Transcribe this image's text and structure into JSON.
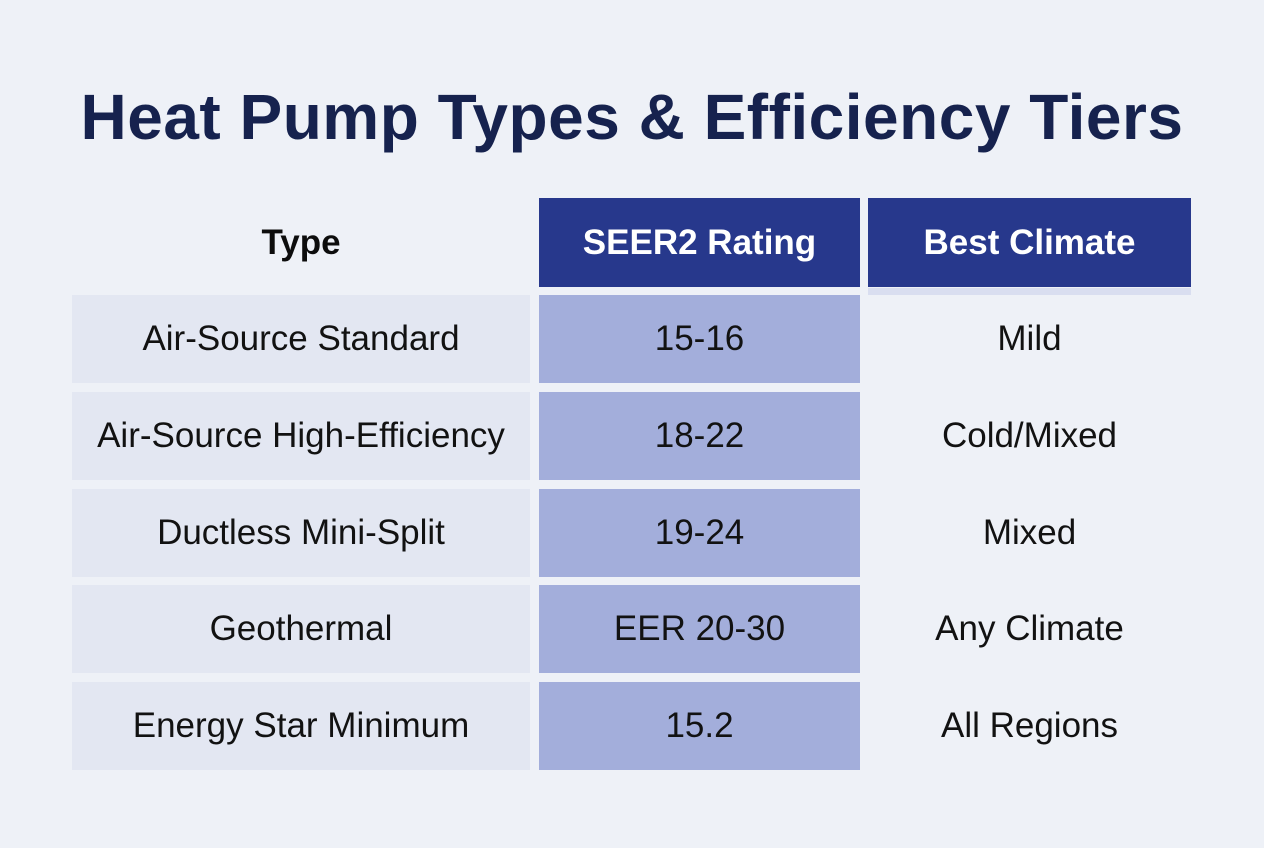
{
  "chart_data": {
    "type": "table",
    "title": "Heat Pump Types & Efficiency Tiers",
    "columns": [
      "Type",
      "SEER2 Rating",
      "Best Climate"
    ],
    "rows": [
      [
        "Air-Source Standard",
        "15-16",
        "Mild"
      ],
      [
        "Air-Source High-Efficiency",
        "18-22",
        "Cold/Mixed"
      ],
      [
        "Ductless Mini-Split",
        "19-24",
        "Mixed"
      ],
      [
        "Geothermal",
        "EER 20-30",
        "Any Climate"
      ],
      [
        "Energy Star Minimum",
        "15.2",
        "All Regions"
      ]
    ]
  },
  "colors": {
    "title": "#16224e",
    "header_fill": "#27388c",
    "rating_column_fill": "#a3aedb",
    "type_column_fill": "#e3e7f2",
    "background": "#eef1f7"
  }
}
